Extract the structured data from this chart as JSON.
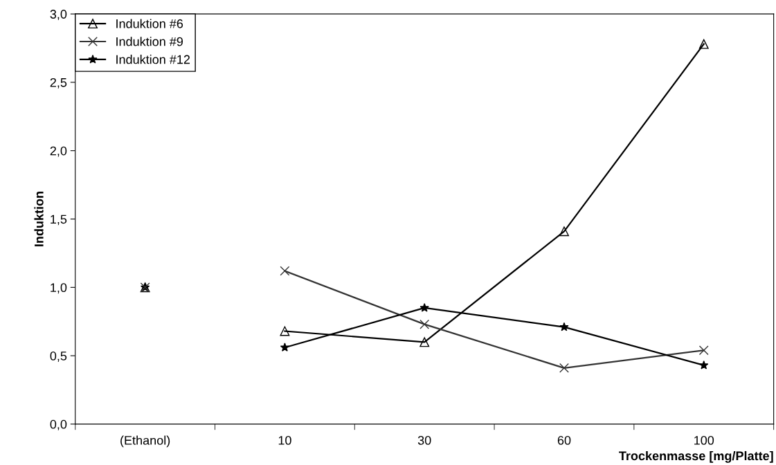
{
  "chart_data": {
    "type": "line",
    "xlabel": "Trockenmasse [mg/Platte]",
    "ylabel": "Induktion",
    "categories": [
      "(Ethanol)",
      "10",
      "30",
      "60",
      "100"
    ],
    "ylim": [
      0,
      3
    ],
    "yticks": [
      {
        "value": 0,
        "label": "0,0"
      },
      {
        "value": 0.5,
        "label": "0,5"
      },
      {
        "value": 1,
        "label": "1,0"
      },
      {
        "value": 1.5,
        "label": "1,5"
      },
      {
        "value": 2,
        "label": "2,0"
      },
      {
        "value": 2.5,
        "label": "2,5"
      },
      {
        "value": 3,
        "label": "3,0"
      }
    ],
    "grid": false,
    "legend": "top left",
    "series": [
      {
        "name": "Induktion #6",
        "color": "#000000",
        "marker": "triangle",
        "x": [
          "10",
          "30",
          "60",
          "100"
        ],
        "values": [
          0.68,
          0.6,
          1.41,
          2.78
        ]
      },
      {
        "name": "Induktion #9",
        "color": "#333333",
        "marker": "cross",
        "x": [
          "10",
          "30",
          "60",
          "100"
        ],
        "values": [
          1.12,
          0.73,
          0.41,
          0.54
        ]
      },
      {
        "name": "Induktion #12",
        "color": "#000000",
        "marker": "star",
        "x": [
          "10",
          "30",
          "60",
          "100"
        ],
        "values": [
          0.56,
          0.85,
          0.71,
          0.43
        ]
      },
      {
        "type": "scatter",
        "color": "#000000",
        "marker": "star",
        "x": [
          "(Ethanol)"
        ],
        "values": [
          1.0
        ]
      },
      {
        "type": "scatter",
        "color": "#000000",
        "marker": "triangle",
        "x": [
          "(Ethanol)"
        ],
        "values": [
          1.0
        ]
      },
      {
        "type": "scatter",
        "color": "#333333",
        "marker": "cross",
        "x": [
          "(Ethanol)"
        ],
        "values": [
          1.0
        ]
      }
    ]
  }
}
